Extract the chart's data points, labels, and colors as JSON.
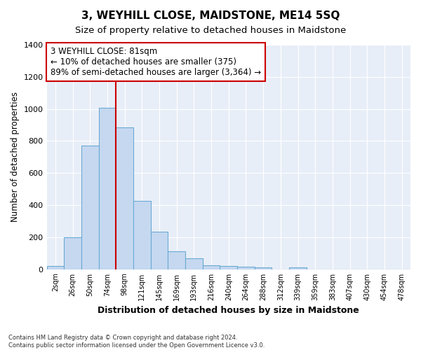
{
  "title": "3, WEYHILL CLOSE, MAIDSTONE, ME14 5SQ",
  "subtitle": "Size of property relative to detached houses in Maidstone",
  "xlabel": "Distribution of detached houses by size in Maidstone",
  "ylabel": "Number of detached properties",
  "categories": [
    "2sqm",
    "26sqm",
    "50sqm",
    "74sqm",
    "98sqm",
    "121sqm",
    "145sqm",
    "169sqm",
    "193sqm",
    "216sqm",
    "240sqm",
    "264sqm",
    "288sqm",
    "312sqm",
    "339sqm",
    "359sqm",
    "383sqm",
    "407sqm",
    "430sqm",
    "454sqm",
    "478sqm"
  ],
  "values": [
    20,
    200,
    770,
    1005,
    885,
    425,
    235,
    110,
    70,
    25,
    20,
    15,
    10,
    0,
    10,
    0,
    0,
    0,
    0,
    0,
    0
  ],
  "bar_color": "#c5d8f0",
  "bar_edge_color": "#6aaad4",
  "vline_color": "#cc0000",
  "annotation_text": "3 WEYHILL CLOSE: 81sqm\n← 10% of detached houses are smaller (375)\n89% of semi-detached houses are larger (3,364) →",
  "annotation_box_color": "#cc0000",
  "ylim": [
    0,
    1400
  ],
  "yticks": [
    0,
    200,
    400,
    600,
    800,
    1000,
    1200,
    1400
  ],
  "footer": "Contains HM Land Registry data © Crown copyright and database right 2024.\nContains public sector information licensed under the Open Government Licence v3.0.",
  "bg_color": "#e8eef7",
  "grid_color": "#ffffff",
  "title_fontsize": 11,
  "subtitle_fontsize": 9.5,
  "annotation_fontsize": 8.5
}
